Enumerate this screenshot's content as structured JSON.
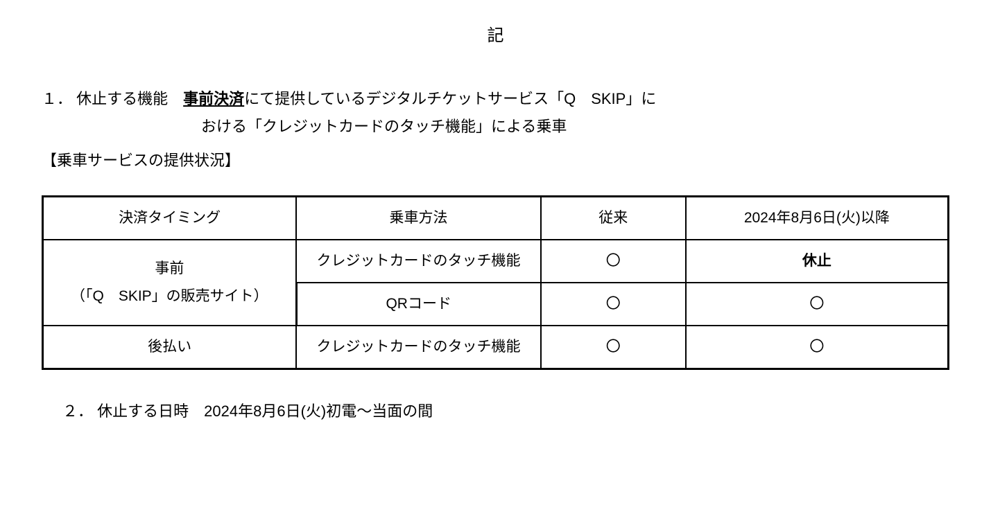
{
  "header": {
    "mark": "記"
  },
  "section1": {
    "number": "１．",
    "label": "休止する機能",
    "emph": "事前決済",
    "tail1": "にて提供しているデジタルチケットサービス「Q　SKIP」に",
    "line2": "おける「クレジットカードのタッチ機能」による乗車",
    "subheading": "【乗車サービスの提供状況】"
  },
  "table": {
    "headers": {
      "timing": "決済タイミング",
      "method": "乗車方法",
      "prev": "従来",
      "after": "2024年8月6日(火)以降"
    },
    "rows": {
      "r1_timing_l1": "事前",
      "r1_timing_l2": "（「Q　SKIP」の販売サイト）",
      "r1_method": "クレジットカードのタッチ機能",
      "r1_prev": "〇",
      "r1_after": "休止",
      "r2_method": "QRコード",
      "r2_prev": "〇",
      "r2_after": "〇",
      "r3_timing": "後払い",
      "r3_method": "クレジットカードのタッチ機能",
      "r3_prev": "〇",
      "r3_after": "〇"
    }
  },
  "section2": {
    "number": "２．",
    "label": "休止する日時",
    "value": "2024年8月6日(火)初電～当面の間"
  }
}
